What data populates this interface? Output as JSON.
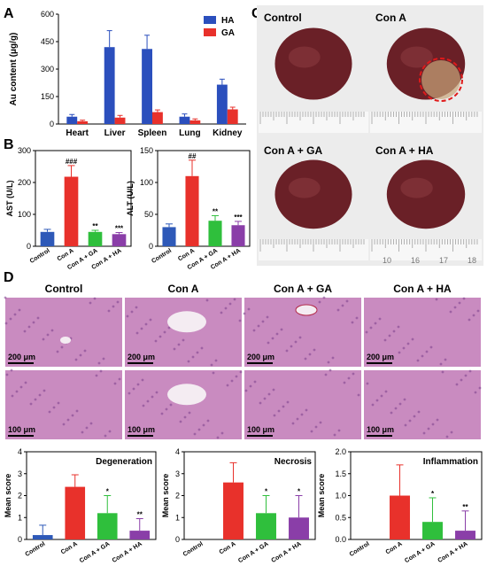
{
  "panel_letters": {
    "a": "A",
    "b": "B",
    "c": "C",
    "d": "D"
  },
  "colors": {
    "ha": "#2b4fbd",
    "ga": "#e8312b",
    "control": "#2e59b8",
    "con_a": "#e8312b",
    "con_a_ga": "#2fbf3c",
    "con_a_ha": "#8a3ea8",
    "liver": "#6a2027",
    "he_stain": "#c98bc0",
    "ruler": "#a0a0a0",
    "necrosis_circle": "#e01a1a"
  },
  "chart_data": [
    {
      "type": "bar",
      "id": "biodistribution",
      "categories": [
        "Heart",
        "Liver",
        "Spleen",
        "Lung",
        "Kidney"
      ],
      "series": [
        {
          "name": "HA",
          "values": [
            40,
            420,
            410,
            40,
            215
          ],
          "err": [
            12,
            90,
            75,
            15,
            30
          ]
        },
        {
          "name": "GA",
          "values": [
            15,
            35,
            65,
            20,
            80
          ],
          "err": [
            6,
            12,
            12,
            8,
            12
          ]
        }
      ],
      "ylabel": "Au content (μg/g)",
      "yticks": [
        0,
        150,
        300,
        450,
        600
      ],
      "ylim": [
        0,
        600
      ],
      "legend": "top-right"
    },
    {
      "type": "bar",
      "id": "ast",
      "categories": [
        "Control",
        "Con A",
        "Con A + GA",
        "Con A + HA"
      ],
      "values": [
        45,
        218,
        45,
        38
      ],
      "err": [
        8,
        35,
        5,
        5
      ],
      "annotations": [
        "",
        "###",
        "**",
        "***"
      ],
      "ylabel": "AST (U/L)",
      "yticks": [
        0,
        100,
        200,
        300
      ],
      "ylim": [
        0,
        300
      ]
    },
    {
      "type": "bar",
      "id": "alt",
      "categories": [
        "Control",
        "Con A",
        "Con A + GA",
        "Con A + HA"
      ],
      "values": [
        30,
        110,
        40,
        33
      ],
      "err": [
        5,
        25,
        8,
        6
      ],
      "annotations": [
        "",
        "##",
        "**",
        "***"
      ],
      "ylabel": "ALT (U/L)",
      "yticks": [
        0,
        50,
        100,
        150
      ],
      "ylim": [
        0,
        150
      ]
    },
    {
      "type": "bar",
      "id": "degeneration",
      "title": "Degeneration",
      "categories": [
        "Control",
        "Con A",
        "Con A + GA",
        "Con A + HA"
      ],
      "values": [
        0.2,
        2.4,
        1.2,
        0.4
      ],
      "err": [
        0.45,
        0.55,
        0.8,
        0.55
      ],
      "annotations": [
        "",
        "",
        "*",
        "**"
      ],
      "ylabel": "Mean score",
      "yticks": [
        0,
        1,
        2,
        3,
        4
      ],
      "ylim": [
        0,
        4
      ]
    },
    {
      "type": "bar",
      "id": "necrosis",
      "title": "Necrosis",
      "categories": [
        "Control",
        "Con A",
        "Con A + GA",
        "Con A + HA"
      ],
      "values": [
        0,
        2.6,
        1.2,
        1.0
      ],
      "err": [
        0,
        0.9,
        0.8,
        1.0
      ],
      "annotations": [
        "",
        "",
        "*",
        "*"
      ],
      "ylabel": "Mean score",
      "yticks": [
        0,
        1,
        2,
        3,
        4
      ],
      "ylim": [
        0,
        4
      ]
    },
    {
      "type": "bar",
      "id": "inflammation",
      "title": "Inflammation",
      "categories": [
        "Control",
        "Con A",
        "Con A + GA",
        "Con A + HA"
      ],
      "values": [
        0,
        1.0,
        0.4,
        0.2
      ],
      "err": [
        0,
        0.7,
        0.55,
        0.45
      ],
      "annotations": [
        "",
        "",
        "*",
        "**"
      ],
      "ylabel": "Mean score",
      "yticks": [
        0,
        0.5,
        1.0,
        1.5,
        2.0
      ],
      "ylim": [
        0,
        2
      ]
    }
  ],
  "panel_c": {
    "labels": [
      "Control",
      "Con A",
      "Con A + GA",
      "Con A + HA"
    ],
    "ruler_numbers": [
      "10",
      "16",
      "17",
      "18"
    ]
  },
  "panel_d": {
    "headers": [
      "Control",
      "Con A",
      "Con A + GA",
      "Con A + HA"
    ],
    "scale_top": "200 μm",
    "scale_bottom": "100 μm"
  }
}
